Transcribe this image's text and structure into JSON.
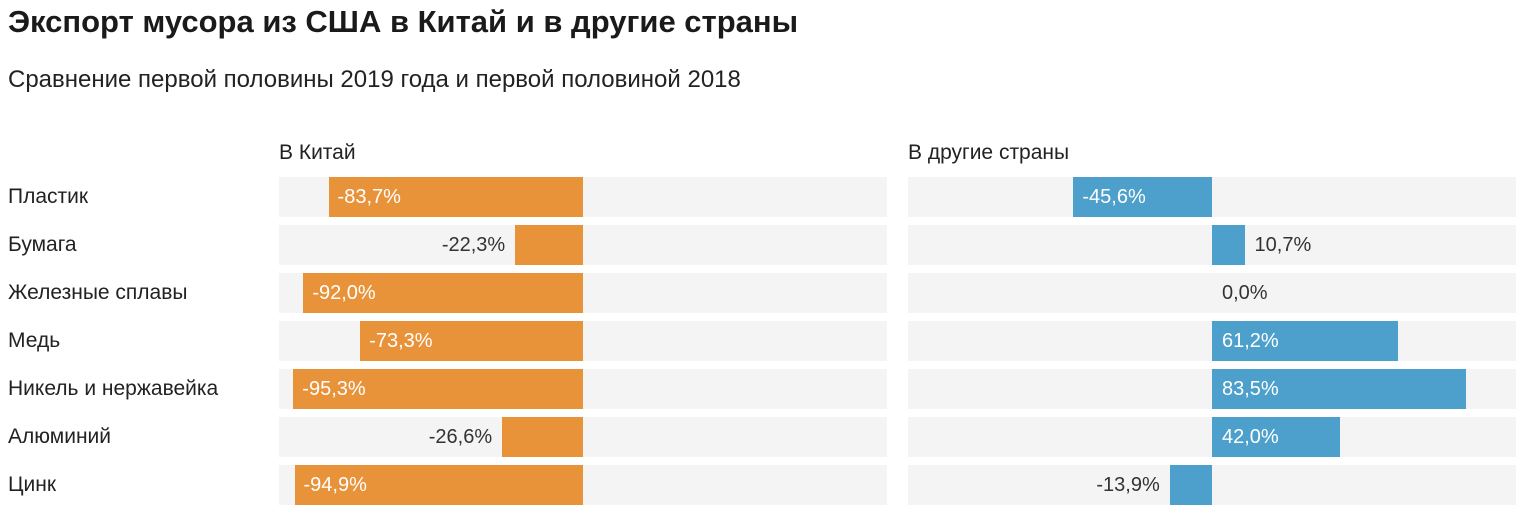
{
  "title": "Экспорт мусора из США в Китай и в другие страны",
  "subtitle": "Сравнение первой половины 2019 года и первой половиной 2018",
  "chart_data": [
    {
      "type": "bar",
      "orientation": "horizontal",
      "title": "В Китай",
      "categories": [
        "Пластик",
        "Бумага",
        "Железные сплавы",
        "Медь",
        "Никель и нержавейка",
        "Алюминий",
        "Цинк"
      ],
      "values": [
        -83.7,
        -22.3,
        -92.0,
        -73.3,
        -95.3,
        -26.6,
        -94.9
      ],
      "labels": [
        "-83,7%",
        "-22,3%",
        "-92,0%",
        "-73,3%",
        "-95,3%",
        "-26,6%",
        "-94,9%"
      ],
      "xlim": [
        -100,
        100
      ],
      "color": "#E8933A",
      "grid": false
    },
    {
      "type": "bar",
      "orientation": "horizontal",
      "title": "В другие страны",
      "categories": [
        "Пластик",
        "Бумага",
        "Железные сплавы",
        "Медь",
        "Никель и нержавейка",
        "Алюминий",
        "Цинк"
      ],
      "values": [
        -45.6,
        10.7,
        0.0,
        61.2,
        83.5,
        42.0,
        -13.9
      ],
      "labels": [
        "-45,6%",
        "10,7%",
        "0,0%",
        "61,2%",
        "83,5%",
        "42,0%",
        "-13,9%"
      ],
      "xlim": [
        -100,
        100
      ],
      "color": "#4DA0CB",
      "grid": false
    }
  ]
}
